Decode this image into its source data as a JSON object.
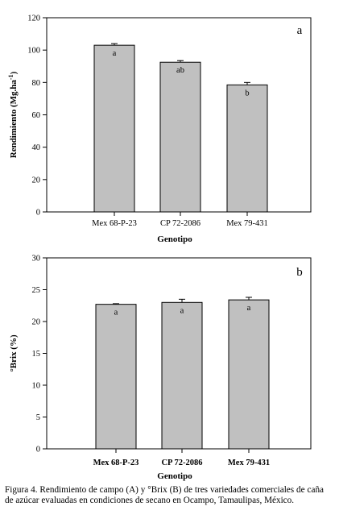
{
  "chart_data": [
    {
      "type": "bar",
      "panel_label": "a",
      "categories": [
        "Mex  68-P-23",
        "CP 72-2086",
        "Mex  79-431"
      ],
      "values": [
        103,
        92.5,
        78.5
      ],
      "errors": [
        1.0,
        1.0,
        1.5
      ],
      "letters": [
        "a",
        "ab",
        "b"
      ],
      "xlabel": "Genotipo",
      "ylabel_main": "Rendimiento (Mg.ha",
      "ylabel_sup": "-1",
      "ylabel_end": ")",
      "ylim": [
        0,
        120
      ],
      "yticks": [
        0,
        20,
        40,
        60,
        80,
        100,
        120
      ],
      "grid": false,
      "bar_color": "#c0c0c0",
      "bold_category_labels": false
    },
    {
      "type": "bar",
      "panel_label": "b",
      "categories": [
        "Mex  68-P-23",
        "CP 72-2086",
        "Mex  79-431"
      ],
      "values": [
        22.7,
        23.0,
        23.4
      ],
      "errors": [
        0.1,
        0.5,
        0.4
      ],
      "letters": [
        "a",
        "a",
        "a"
      ],
      "xlabel": "Genotipo",
      "ylabel_main": "°Brix (%)",
      "ylabel_sup": "",
      "ylabel_end": "",
      "ylim": [
        0,
        30
      ],
      "yticks": [
        0,
        5,
        10,
        15,
        20,
        25,
        30
      ],
      "grid": false,
      "bar_color": "#c0c0c0",
      "bold_category_labels": true
    }
  ],
  "caption": "Figura 4. Rendimiento de campo (A) y °Brix (B) de tres variedades comerciales de caña de azúcar evaluadas en condiciones de secano en Ocampo, Tamaulipas, México."
}
